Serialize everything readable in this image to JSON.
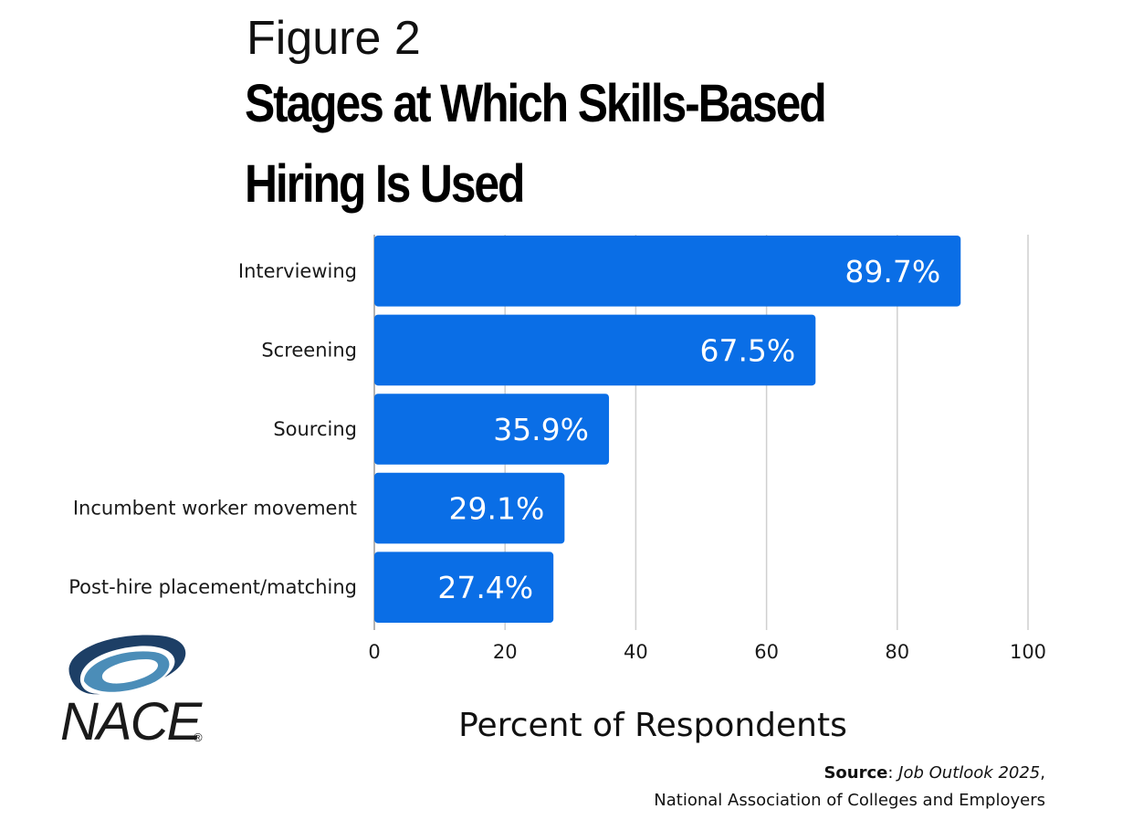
{
  "figure_label": "Figure 2",
  "title_lines": [
    "Stages at Which Skills-Based",
    "Hiring Is Used"
  ],
  "chart_data": {
    "type": "bar",
    "orientation": "horizontal",
    "title": "Stages at Which Skills-Based Hiring Is Used",
    "categories": [
      "Interviewing",
      "Screening",
      "Sourcing",
      "Incumbent worker movement",
      "Post-hire placement/matching"
    ],
    "values": [
      89.7,
      67.5,
      35.9,
      29.1,
      27.4
    ],
    "data_labels": [
      "89.7%",
      "67.5%",
      "35.9%",
      "29.1%",
      "27.4%"
    ],
    "xlabel": "Percent of Respondents",
    "ylabel": "",
    "xlim": [
      0,
      100
    ],
    "xticks": [
      0,
      20,
      40,
      60,
      80,
      100
    ],
    "grid": "vertical",
    "legend": "none",
    "bar_color": "#0a6ee6"
  },
  "source": {
    "label": "Source",
    "separator": ": ",
    "publication": "Job Outlook 2025",
    "publication_suffix": ",",
    "organization": "National Association of Colleges and Employers"
  },
  "logo": {
    "text": "NACE",
    "mark": "®",
    "primary_color": "#1d3f66",
    "secondary_color": "#4b8db8"
  }
}
